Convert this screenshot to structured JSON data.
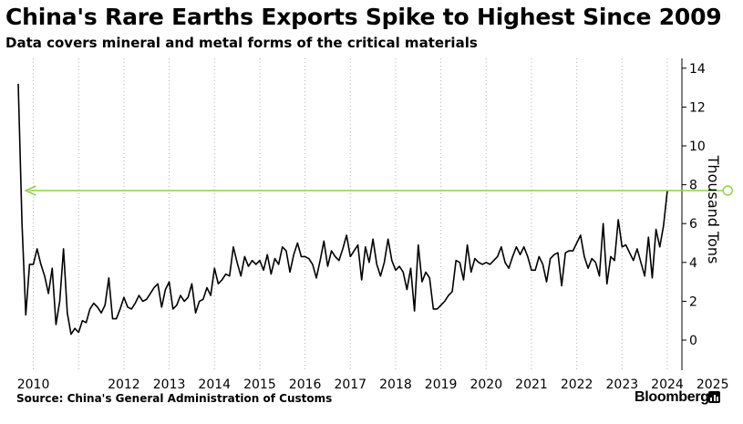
{
  "title": "China's Rare Earths Exports Spike to Highest Since 2009",
  "subtitle": "Data covers mineral and metal forms of the critical materials",
  "source": "Source: China's General Administration of Customs",
  "brand": "Bloomberg",
  "colors": {
    "line": "#000000",
    "arrow": "#8ed43e",
    "axis": "#000000",
    "grid": "#b0b0b0"
  },
  "chart_data": {
    "type": "line",
    "title": "China's Rare Earths Exports Spike to Highest Since 2009",
    "ylabel": "Thousand Tons",
    "xlabel": "",
    "ylim": [
      -1,
      14.5
    ],
    "yticks": [
      0,
      2,
      4,
      6,
      8,
      10,
      12,
      14
    ],
    "xticks": [
      "2010",
      "2012",
      "2013",
      "2014",
      "2015",
      "2016",
      "2017",
      "2018",
      "2019",
      "2020",
      "2021",
      "2022",
      "2023",
      "2024",
      "2025"
    ],
    "grid": "vertical dotted at year boundaries",
    "annotation": {
      "type": "arrow",
      "from": "2025-05",
      "to": "2009-11",
      "value": 7.7,
      "note": "highest since 2009"
    },
    "series": [
      {
        "name": "",
        "start": "2009-09",
        "frequency": "monthly",
        "values": [
          13.2,
          6.0,
          1.3,
          3.9,
          3.9,
          4.7,
          3.9,
          3.3,
          2.4,
          3.7,
          0.8,
          2.0,
          4.7,
          1.4,
          0.3,
          0.6,
          0.4,
          1.0,
          0.9,
          1.6,
          1.9,
          1.7,
          1.4,
          1.8,
          3.2,
          1.1,
          1.1,
          1.6,
          2.2,
          1.7,
          1.6,
          1.9,
          2.3,
          2.0,
          2.1,
          2.4,
          2.7,
          2.9,
          1.7,
          2.6,
          3.0,
          1.6,
          1.8,
          2.3,
          2.0,
          2.2,
          2.9,
          1.4,
          2.0,
          2.1,
          2.7,
          2.3,
          3.7,
          2.9,
          3.1,
          3.4,
          3.3,
          4.8,
          4.0,
          3.3,
          4.3,
          3.8,
          4.1,
          3.9,
          4.1,
          3.6,
          4.4,
          3.4,
          4.2,
          3.9,
          4.8,
          4.6,
          3.5,
          4.4,
          5.0,
          4.3,
          4.3,
          4.2,
          3.9,
          3.2,
          4.1,
          5.1,
          3.8,
          4.6,
          4.3,
          4.1,
          4.7,
          5.4,
          4.3,
          4.6,
          4.9,
          3.1,
          4.8,
          4.0,
          5.2,
          3.9,
          3.3,
          4.0,
          5.2,
          4.1,
          3.6,
          3.8,
          3.5,
          2.6,
          3.7,
          1.5,
          4.9,
          3.0,
          3.5,
          3.2,
          1.6,
          1.6,
          1.8,
          2.0,
          2.3,
          2.5,
          4.1,
          4.0,
          3.1,
          4.9,
          3.5,
          4.2,
          4.0,
          3.9,
          4.0,
          3.9,
          4.1,
          4.3,
          4.8,
          4.0,
          3.7,
          4.3,
          4.8,
          4.4,
          4.8,
          4.3,
          3.6,
          3.6,
          4.3,
          3.9,
          3.0,
          4.2,
          4.4,
          4.5,
          2.8,
          4.5,
          4.6,
          4.6,
          5.0,
          5.4,
          4.3,
          3.7,
          4.2,
          4.0,
          3.3,
          6.0,
          2.9,
          4.3,
          4.1,
          6.2,
          4.8,
          4.9,
          4.5,
          4.1,
          4.7,
          4.0,
          3.3,
          5.3,
          3.2,
          5.7,
          4.8,
          5.9,
          7.7
        ]
      }
    ]
  }
}
